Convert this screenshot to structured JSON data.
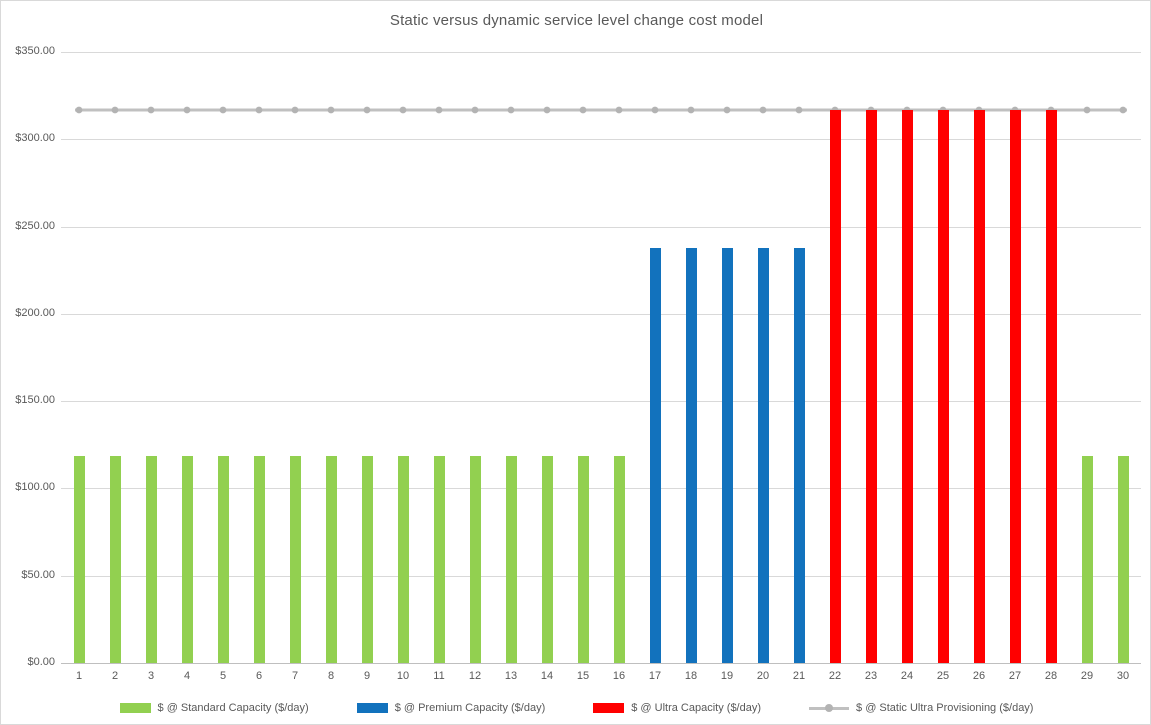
{
  "chart_data": {
    "type": "bar",
    "title": "Static versus dynamic service level change cost model",
    "xlabel": "",
    "ylabel": "",
    "categories": [
      "1",
      "2",
      "3",
      "4",
      "5",
      "6",
      "7",
      "8",
      "9",
      "10",
      "11",
      "12",
      "13",
      "14",
      "15",
      "16",
      "17",
      "18",
      "19",
      "20",
      "21",
      "22",
      "23",
      "24",
      "25",
      "26",
      "27",
      "28",
      "29",
      "30"
    ],
    "ylim": [
      0,
      350
    ],
    "ytick_step": 50,
    "ytick_labels": [
      "$0.00",
      "$50.00",
      "$100.00",
      "$150.00",
      "$200.00",
      "$250.00",
      "$300.00",
      "$350.00"
    ],
    "grid": "horizontal",
    "legend_position": "bottom",
    "series": [
      {
        "key": "standard-capacity",
        "name": "$ @ Standard Capacity ($/day)",
        "type": "bar",
        "color": "#92D050",
        "values": [
          118.8,
          118.8,
          118.8,
          118.8,
          118.8,
          118.8,
          118.8,
          118.8,
          118.8,
          118.8,
          118.8,
          118.8,
          118.8,
          118.8,
          118.8,
          118.8,
          null,
          null,
          null,
          null,
          null,
          null,
          null,
          null,
          null,
          null,
          null,
          null,
          118.8,
          118.8
        ]
      },
      {
        "key": "premium-capacity",
        "name": "$ @ Premium Capacity ($/day)",
        "type": "bar",
        "color": "#1272BD",
        "values": [
          null,
          null,
          null,
          null,
          null,
          null,
          null,
          null,
          null,
          null,
          null,
          null,
          null,
          null,
          null,
          null,
          237.6,
          237.6,
          237.6,
          237.6,
          237.6,
          null,
          null,
          null,
          null,
          null,
          null,
          null,
          null,
          null
        ]
      },
      {
        "key": "ultra-capacity",
        "name": "$ @ Ultra Capacity ($/day)",
        "type": "bar",
        "color": "#FF0000",
        "values": [
          null,
          null,
          null,
          null,
          null,
          null,
          null,
          null,
          null,
          null,
          null,
          null,
          null,
          null,
          null,
          null,
          null,
          null,
          null,
          null,
          null,
          316.8,
          316.8,
          316.8,
          316.8,
          316.8,
          316.8,
          316.8,
          null,
          null
        ]
      },
      {
        "key": "static-ultra-provisioning",
        "name": "$ @ Static Ultra Provisioning ($/day)",
        "type": "line",
        "color": "#C0C0C0",
        "marker_color": "#B3B3B3",
        "values": [
          316.8,
          316.8,
          316.8,
          316.8,
          316.8,
          316.8,
          316.8,
          316.8,
          316.8,
          316.8,
          316.8,
          316.8,
          316.8,
          316.8,
          316.8,
          316.8,
          316.8,
          316.8,
          316.8,
          316.8,
          316.8,
          316.8,
          316.8,
          316.8,
          316.8,
          316.8,
          316.8,
          316.8,
          316.8,
          316.8
        ]
      }
    ],
    "colors": {
      "grid": "#D9D9D9",
      "axis": "#BFBFBF",
      "text": "#595959",
      "background": "#FFFFFF"
    }
  }
}
